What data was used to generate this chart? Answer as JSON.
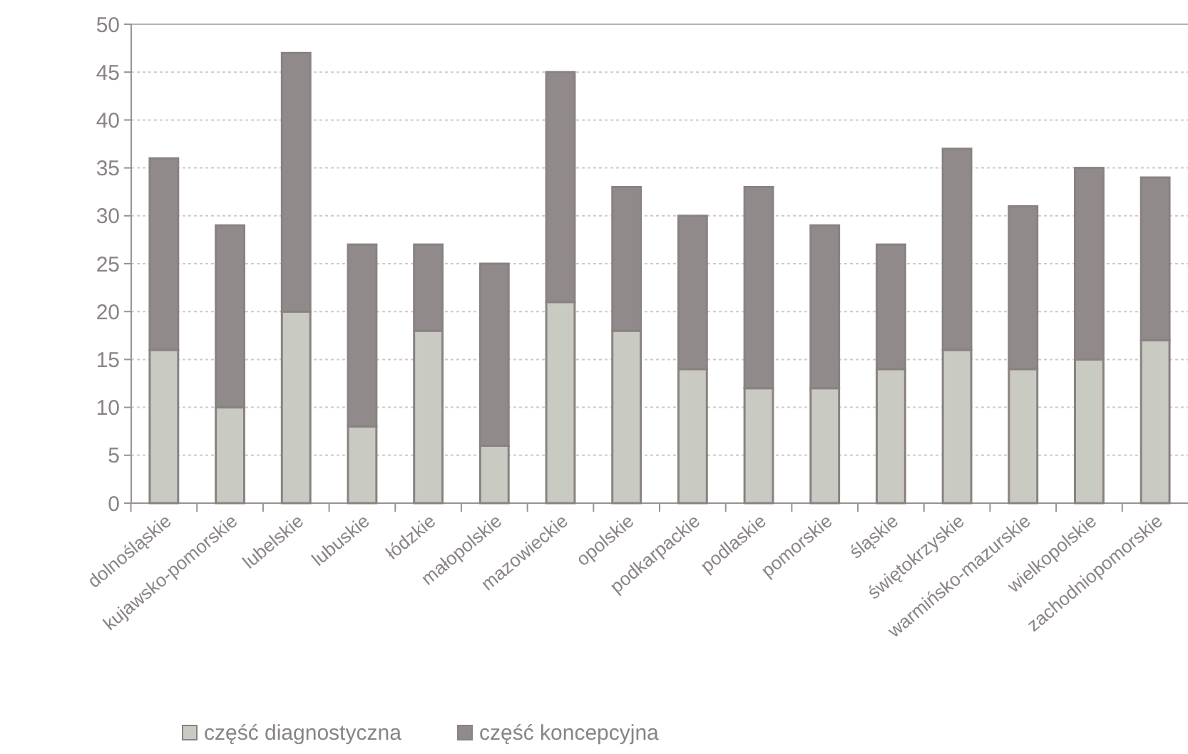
{
  "chart_data": {
    "type": "bar",
    "stacked": true,
    "categories": [
      "dolnośląskie",
      "kujawsko-pomorskie",
      "lubelskie",
      "lubuskie",
      "łódzkie",
      "małopolskie",
      "mazowieckie",
      "opolskie",
      "podkarpackie",
      "podlaskie",
      "pomorskie",
      "śląskie",
      "świętokrzyskie",
      "warmińsko-mazurskie",
      "wielkopolskie",
      "zachodniopomorskie"
    ],
    "series": [
      {
        "name": "część diagnostyczna",
        "color": "#c9cac2",
        "values": [
          16,
          10,
          20,
          8,
          18,
          6,
          21,
          18,
          14,
          12,
          12,
          14,
          16,
          14,
          15,
          17
        ]
      },
      {
        "name": "część koncepcyjna",
        "color": "#918a8a",
        "values": [
          20,
          19,
          27,
          19,
          9,
          19,
          24,
          15,
          16,
          21,
          17,
          13,
          21,
          17,
          20,
          17
        ]
      }
    ],
    "ylim": [
      0,
      50
    ],
    "yticks": [
      0,
      5,
      10,
      15,
      20,
      25,
      30,
      35,
      40,
      45,
      50
    ],
    "grid": "y",
    "legend": "bottom left"
  }
}
